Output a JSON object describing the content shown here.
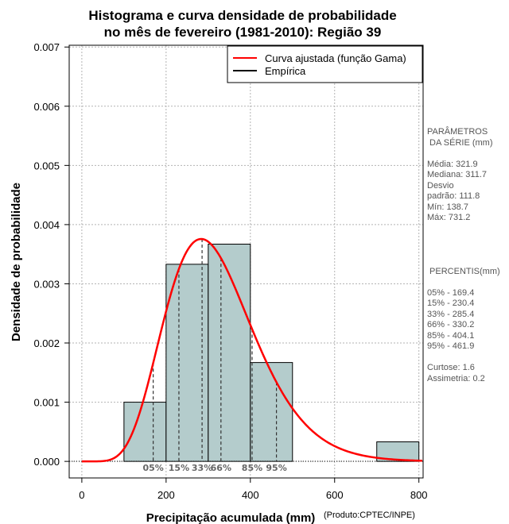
{
  "chart_data": {
    "type": "bar",
    "title_lines": [
      "Histograma e curva densidade de probabilidade",
      "no mês de fevereiro (1981-2010): Região 39"
    ],
    "xlabel": "Precipitação acumulada (mm)",
    "ylabel": "Densidade de probabilidade",
    "credit": "(Produto:CPTEC/INPE)",
    "xlim": [
      -30,
      810
    ],
    "ylim": [
      -0.00028,
      0.00703
    ],
    "x_ticks": [
      0,
      200,
      400,
      600,
      800
    ],
    "x_tick_labels": [
      "0",
      "200",
      "400",
      "600",
      "800"
    ],
    "y_ticks": [
      0,
      0.001,
      0.002,
      0.003,
      0.004,
      0.005,
      0.006,
      0.007
    ],
    "y_tick_labels": [
      "0.000",
      "0.001",
      "0.002",
      "0.003",
      "0.004",
      "0.005",
      "0.006",
      "0.007"
    ],
    "grid": true,
    "bar_color": "#b4cccc",
    "curve_color": "#ff0000",
    "bins": [
      {
        "start": 100,
        "end": 200,
        "density": 0.001
      },
      {
        "start": 200,
        "end": 300,
        "density": 0.00333
      },
      {
        "start": 300,
        "end": 400,
        "density": 0.00367
      },
      {
        "start": 400,
        "end": 500,
        "density": 0.00167
      },
      {
        "start": 700,
        "end": 800,
        "density": 0.00033
      }
    ],
    "gamma_fit": {
      "shape": 8.28,
      "scale": 38.9
    },
    "percentile_markers": [
      {
        "label": "05%",
        "value": 169.4
      },
      {
        "label": "15%",
        "value": 230.4
      },
      {
        "label": "33%",
        "value": 285.4
      },
      {
        "label": "66%",
        "value": 330.2
      },
      {
        "label": "85%",
        "value": 404.1
      },
      {
        "label": "95%",
        "value": 461.9
      }
    ],
    "legend": {
      "position": "top-right",
      "entries": [
        {
          "label": "Curva ajustada (função Gama)",
          "color": "#ff0000"
        },
        {
          "label": "Empírica",
          "color": "#000000"
        }
      ]
    }
  },
  "side_panel": {
    "params_heading_1": "PARÂMETROS",
    "params_heading_2": " DA SÉRIE (mm)",
    "params": [
      "Média:  321.9",
      "Mediana:  311.7",
      "Desvio",
      "padrão:  111.8",
      "Mín:  138.7",
      "Máx:  731.2"
    ],
    "percentis_heading": " PERCENTIS(mm)",
    "percentis": [
      "05% -  169.4",
      "15% -  230.4",
      "33% -  285.4",
      "66% -  330.2",
      "85% -  404.1",
      "95% -  461.9"
    ],
    "shape_stats": [
      "Curtose:  1.6",
      "Assimetria:  0.2"
    ]
  }
}
